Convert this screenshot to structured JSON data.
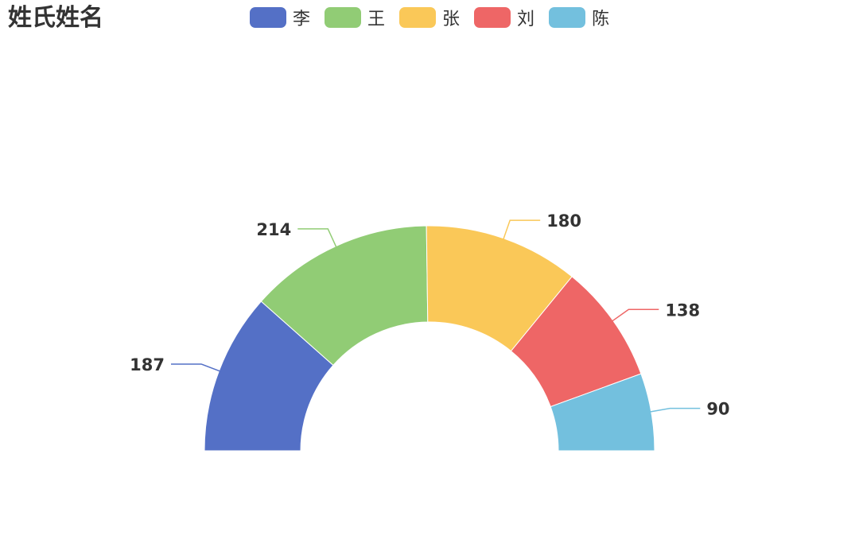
{
  "chart_data": {
    "type": "pie",
    "variant": "half-donut",
    "title": "姓氏姓名",
    "legend_position": "top",
    "categories": [
      "李",
      "王",
      "张",
      "刘",
      "陈"
    ],
    "values": [
      187,
      214,
      180,
      138,
      90
    ],
    "colors": [
      "#5470c6",
      "#91cc75",
      "#fac858",
      "#ee6666",
      "#73c0de"
    ]
  }
}
